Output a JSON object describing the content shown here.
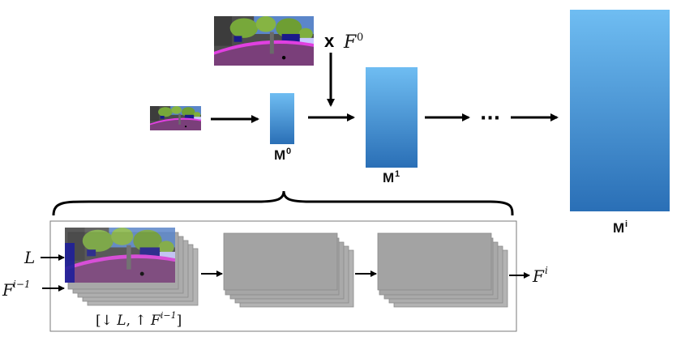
{
  "colors": {
    "block_top": "#6fbdf2",
    "block_bottom": "#2a6fb6",
    "arrow": "#000000",
    "feature_map": "#a3a3a3",
    "panel_border": "#7a7a7a"
  },
  "top": {
    "multiply_symbol": "x",
    "multiply_F": "F",
    "multiply_F_sup": "0",
    "ellipsis": "···",
    "blocks": [
      {
        "name": "M",
        "sup": "0"
      },
      {
        "name": "M",
        "sup": "1"
      },
      {
        "name": "M",
        "sup": "i"
      }
    ]
  },
  "module": {
    "input_L": "L",
    "input_F": "F",
    "input_F_sup": "i−1",
    "output_F": "F",
    "output_F_sup": "i",
    "caption_open": "[↓ ",
    "caption_L": "L",
    "caption_mid": ", ↑ ",
    "caption_F": "F",
    "caption_F_sup": "i−1",
    "caption_close": "]"
  },
  "images": [
    {
      "name": "segmentation-map-small",
      "icon": "semantic-street-scene"
    },
    {
      "name": "segmentation-map-large",
      "icon": "semantic-street-scene"
    }
  ]
}
